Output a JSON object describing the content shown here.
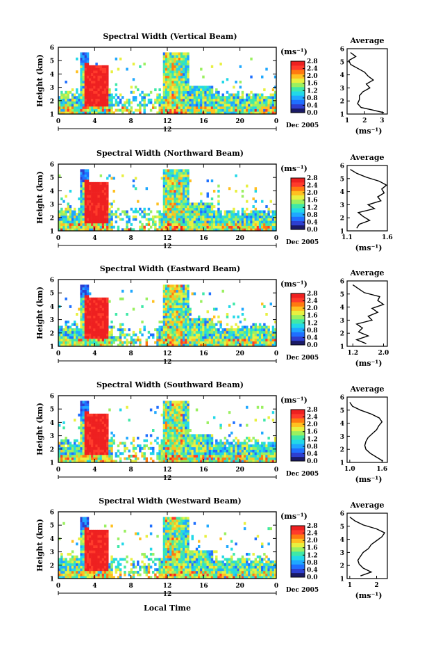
{
  "x_axis_label": "Local Time",
  "height_axis_label": "Height (km)",
  "date_label": "Dec 2005",
  "day_marker": "12",
  "average_title": "Average",
  "unit_label": "(ms⁻¹)",
  "panel_order": [
    "vertical",
    "northward",
    "eastward",
    "southward",
    "westward"
  ],
  "colormap": [
    "#1a1a66",
    "#2d3fd0",
    "#1f6fff",
    "#1fa8ff",
    "#22d8e8",
    "#3fe8a8",
    "#9af060",
    "#e8f040",
    "#ffc020",
    "#ff7a10",
    "#ff3b2b",
    "#ee2020"
  ],
  "chart_data": [
    {
      "type": "heatmap",
      "key": "vertical",
      "title": "Spectral Width (Vertical Beam)",
      "xlabel": "Local Time",
      "ylabel": "Height (km)",
      "xlim": [
        0,
        24
      ],
      "ylim": [
        1,
        6
      ],
      "xticks": [
        "0",
        "4",
        "8",
        "12",
        "16",
        "20",
        "0"
      ],
      "yticks": [
        "1",
        "2",
        "3",
        "4",
        "5",
        "6"
      ],
      "colorbar": {
        "unit": "(ms⁻¹)",
        "min": 0,
        "max": 2.8,
        "ticks": [
          "0.0",
          "0.4",
          "0.8",
          "1.2",
          "1.6",
          "2.0",
          "2.4",
          "2.8"
        ]
      },
      "average_profile": {
        "title": "Average",
        "xlabel": "(ms⁻¹)",
        "xticks": [
          "1",
          "2",
          "3"
        ],
        "xlim": [
          1,
          3.3
        ],
        "heights": [
          1.1,
          1.3,
          1.5,
          1.8,
          2.1,
          2.4,
          2.7,
          3.0,
          3.3,
          3.6,
          3.9,
          4.2,
          4.5,
          4.8,
          5.1,
          5.4,
          5.7
        ],
        "values": [
          3.1,
          2.5,
          1.8,
          1.6,
          1.7,
          1.7,
          1.9,
          2.3,
          2.1,
          2.5,
          2.2,
          2.0,
          1.6,
          1.2,
          1.1,
          1.5,
          1.2
        ]
      }
    },
    {
      "type": "heatmap",
      "key": "northward",
      "title": "Spectral Width (Northward Beam)",
      "xlabel": "Local Time",
      "ylabel": "Height (km)",
      "xlim": [
        0,
        24
      ],
      "ylim": [
        1,
        6
      ],
      "xticks": [
        "0",
        "4",
        "8",
        "12",
        "16",
        "20",
        "0"
      ],
      "yticks": [
        "1",
        "2",
        "3",
        "4",
        "5",
        "6"
      ],
      "colorbar": {
        "unit": "(ms⁻¹)",
        "min": 0,
        "max": 2.8,
        "ticks": [
          "0.0",
          "0.4",
          "0.8",
          "1.2",
          "1.6",
          "2.0",
          "2.4",
          "2.8"
        ]
      },
      "average_profile": {
        "title": "Average",
        "xlabel": "(ms⁻¹)",
        "xticks": [
          "1.1",
          "1.6"
        ],
        "xlim": [
          1.1,
          1.6
        ],
        "heights": [
          1.2,
          1.5,
          1.8,
          2.1,
          2.4,
          2.7,
          3.0,
          3.3,
          3.6,
          3.9,
          4.2,
          4.5,
          4.8,
          5.1,
          5.4,
          5.7
        ],
        "values": [
          1.22,
          1.25,
          1.38,
          1.3,
          1.24,
          1.44,
          1.36,
          1.52,
          1.48,
          1.56,
          1.53,
          1.59,
          1.5,
          1.34,
          1.22,
          1.14
        ]
      }
    },
    {
      "type": "heatmap",
      "key": "eastward",
      "title": "Spectral Width (Eastward Beam)",
      "xlabel": "Local Time",
      "ylabel": "Height (km)",
      "xlim": [
        0,
        24
      ],
      "ylim": [
        1,
        6
      ],
      "xticks": [
        "0",
        "4",
        "8",
        "12",
        "16",
        "20",
        "0"
      ],
      "yticks": [
        "1",
        "2",
        "3",
        "4",
        "5",
        "6"
      ],
      "colorbar": {
        "unit": "(ms⁻¹)",
        "min": 0,
        "max": 2.8,
        "ticks": [
          "0.0",
          "0.4",
          "0.8",
          "1.2",
          "1.6",
          "2.0",
          "2.4",
          "2.8"
        ]
      },
      "average_profile": {
        "title": "Average",
        "xlabel": "(ms⁻¹)",
        "xticks": [
          "1.2",
          "2.0"
        ],
        "xlim": [
          1.05,
          2.1
        ],
        "heights": [
          1.2,
          1.5,
          1.8,
          2.1,
          2.4,
          2.7,
          3.0,
          3.3,
          3.6,
          3.9,
          4.2,
          4.5,
          4.8,
          5.1,
          5.4,
          5.7
        ],
        "values": [
          1.55,
          1.3,
          1.6,
          1.35,
          1.45,
          1.3,
          1.7,
          1.6,
          1.85,
          1.7,
          2.0,
          1.85,
          1.9,
          1.5,
          1.35,
          1.2
        ]
      }
    },
    {
      "type": "heatmap",
      "key": "southward",
      "title": "Spectral Width (Southward Beam)",
      "xlabel": "Local Time",
      "ylabel": "Height (km)",
      "xlim": [
        0,
        24
      ],
      "ylim": [
        1,
        6
      ],
      "xticks": [
        "0",
        "4",
        "8",
        "12",
        "16",
        "20",
        "0"
      ],
      "yticks": [
        "1",
        "2",
        "3",
        "4",
        "5",
        "6"
      ],
      "colorbar": {
        "unit": "(ms⁻¹)",
        "min": 0,
        "max": 2.8,
        "ticks": [
          "0.0",
          "0.4",
          "0.8",
          "1.2",
          "1.6",
          "2.0",
          "2.4",
          "2.8"
        ]
      },
      "average_profile": {
        "title": "Average",
        "xlabel": "(ms⁻¹)",
        "xticks": [
          "1.0",
          "1.6"
        ],
        "xlim": [
          0.95,
          1.7
        ],
        "heights": [
          1.1,
          1.4,
          1.7,
          2.0,
          2.3,
          2.6,
          2.9,
          3.2,
          3.5,
          3.8,
          4.1,
          4.4,
          4.7,
          5.0,
          5.3,
          5.6
        ],
        "values": [
          1.62,
          1.5,
          1.38,
          1.3,
          1.28,
          1.3,
          1.34,
          1.42,
          1.5,
          1.54,
          1.6,
          1.55,
          1.4,
          1.2,
          1.05,
          1.0
        ]
      }
    },
    {
      "type": "heatmap",
      "key": "westward",
      "title": "Spectral Width (Westward Beam)",
      "xlabel": "Local Time",
      "ylabel": "Height (km)",
      "xlim": [
        0,
        24
      ],
      "ylim": [
        1,
        6
      ],
      "xticks": [
        "0",
        "4",
        "8",
        "12",
        "16",
        "20",
        "0"
      ],
      "yticks": [
        "1",
        "2",
        "3",
        "4",
        "5",
        "6"
      ],
      "colorbar": {
        "unit": "(ms⁻¹)",
        "min": 0,
        "max": 2.8,
        "ticks": [
          "0.0",
          "0.4",
          "0.8",
          "1.2",
          "1.6",
          "2.0",
          "2.4",
          "2.8"
        ]
      },
      "average_profile": {
        "title": "Average",
        "xlabel": "(ms⁻¹)",
        "xticks": [
          "1",
          "2"
        ],
        "xlim": [
          0.9,
          2.4
        ],
        "heights": [
          1.2,
          1.5,
          1.8,
          2.1,
          2.4,
          2.7,
          3.0,
          3.3,
          3.6,
          3.9,
          4.2,
          4.5,
          4.8,
          5.1,
          5.4,
          5.7
        ],
        "values": [
          1.4,
          1.8,
          1.5,
          1.35,
          1.3,
          1.4,
          1.5,
          1.7,
          1.8,
          2.0,
          2.2,
          2.3,
          2.0,
          1.5,
          1.2,
          1.0
        ]
      }
    }
  ]
}
